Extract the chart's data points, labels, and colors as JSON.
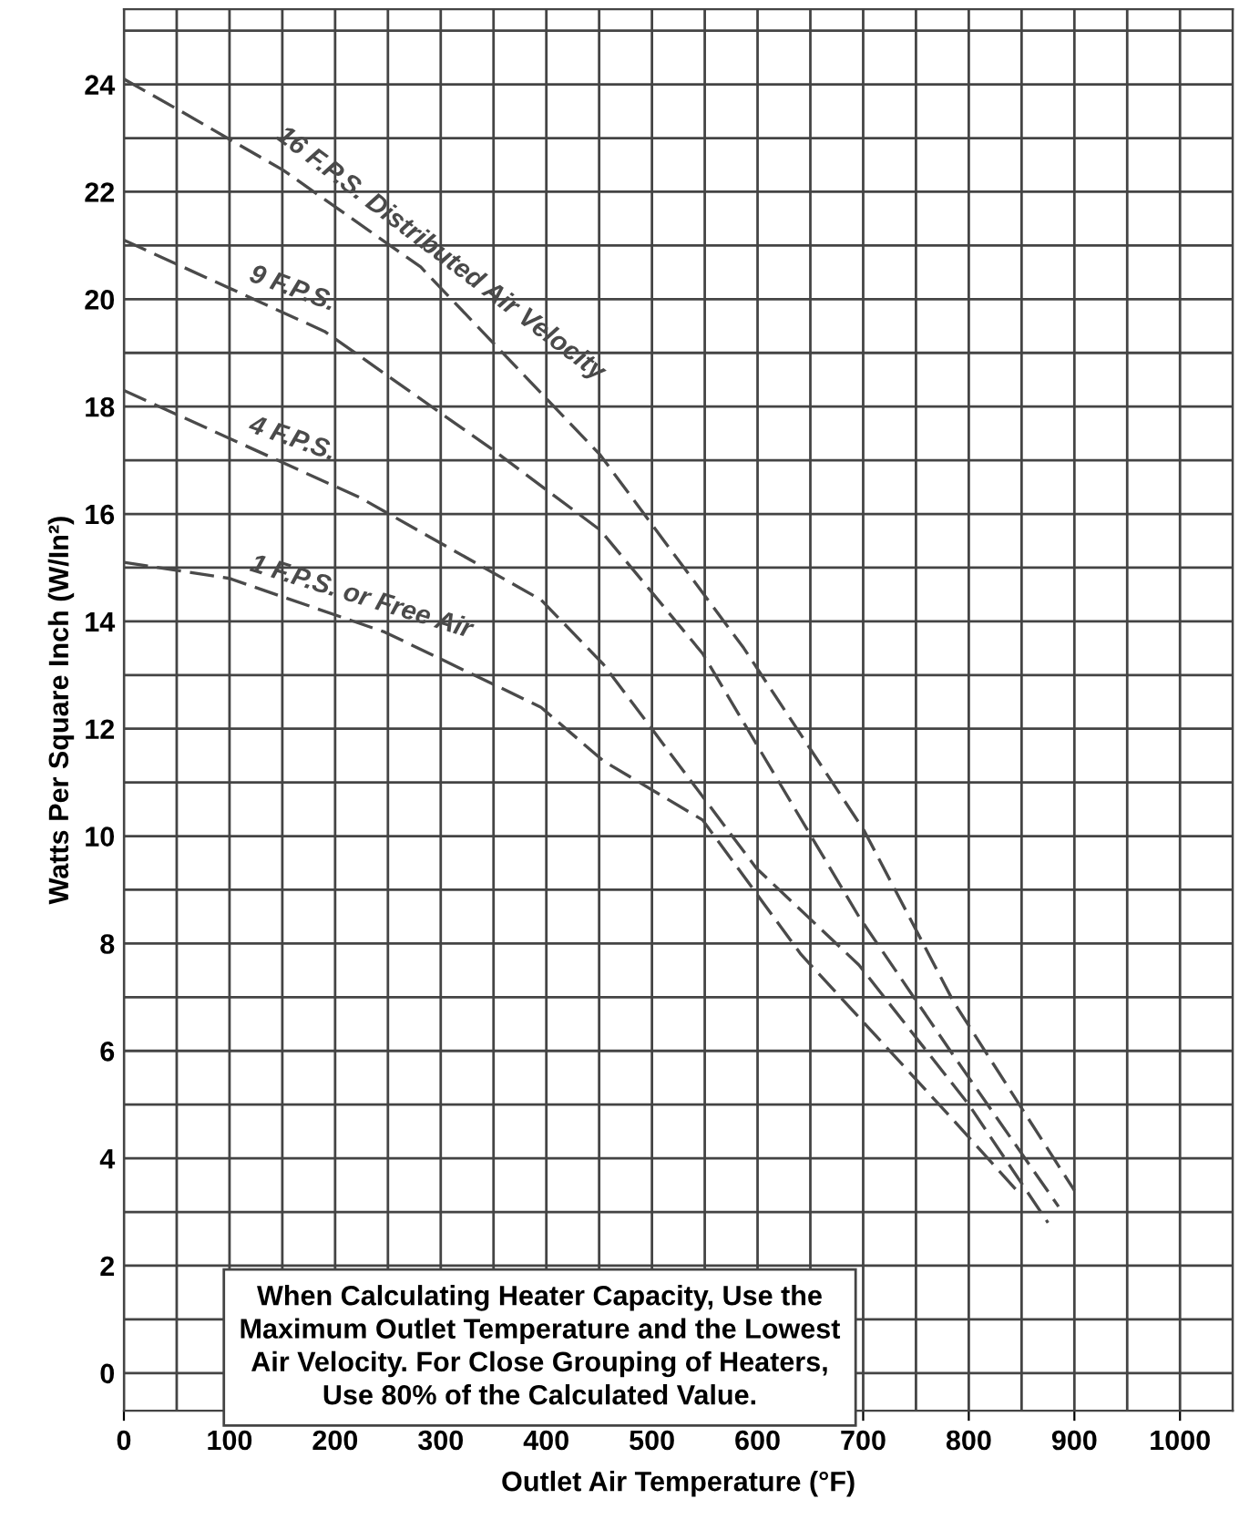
{
  "chart_data": {
    "type": "line",
    "xlabel": "Outlet Air Temperature (°F)",
    "ylabel": "Watts Per Square Inch (W/In²)",
    "xlim": [
      0,
      1050
    ],
    "xticks": [
      0,
      100,
      200,
      300,
      400,
      500,
      600,
      700,
      800,
      900,
      1000
    ],
    "ylim": [
      -0.7,
      25.4
    ],
    "yticks": [
      0,
      2,
      4,
      6,
      8,
      10,
      12,
      14,
      16,
      18,
      20,
      22,
      24
    ],
    "grid": true,
    "line_style": "dashed",
    "marker": "none",
    "series": [
      {
        "name": "16 F.P.S. Distributed Air Velocity",
        "color": "#4a4a4a",
        "x": [
          0,
          54,
          151,
          281,
          451,
          587,
          701,
          786,
          900
        ],
        "values": [
          24.1,
          23.5,
          22.4,
          20.6,
          17.1,
          13.5,
          10.1,
          6.9,
          3.4
        ]
      },
      {
        "name": "9 F.P.S.",
        "color": "#4a4a4a",
        "x": [
          0,
          190,
          349,
          451,
          548,
          696,
          786,
          885
        ],
        "values": [
          21.1,
          19.4,
          17.2,
          15.7,
          13.4,
          8.5,
          5.9,
          3.1
        ]
      },
      {
        "name": "4 F.P.S.",
        "color": "#4a4a4a",
        "x": [
          0,
          224,
          395,
          454,
          599,
          696,
          800,
          875
        ],
        "values": [
          18.3,
          16.3,
          14.4,
          13.2,
          9.4,
          7.6,
          5.0,
          2.8
        ]
      },
      {
        "name": "1 F.P.S. or Free Air",
        "color": "#4a4a4a",
        "x": [
          0,
          100,
          247,
          395,
          454,
          548,
          641,
          786,
          850
        ],
        "values": [
          15.1,
          14.8,
          13.8,
          12.4,
          11.4,
          10.3,
          7.8,
          4.7,
          3.3
        ]
      }
    ],
    "annotations": [
      "When Calculating Heater Capacity, Use the\nMaximum Outlet Temperature and the Lowest\nAir Velocity. For Close Grouping of Heaters,\nUse 80% of the Calculated Value."
    ]
  }
}
